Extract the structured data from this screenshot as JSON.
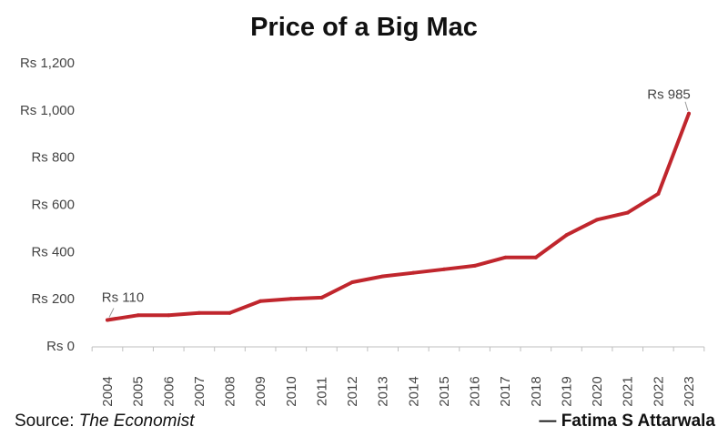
{
  "chart_data": {
    "type": "line",
    "title": "Price of a Big Mac",
    "x": [
      "2004",
      "2005",
      "2006",
      "2007",
      "2008",
      "2009",
      "2010",
      "2011",
      "2012",
      "2013",
      "2014",
      "2015",
      "2016",
      "2017",
      "2018",
      "2019",
      "2020",
      "2021",
      "2022",
      "2023"
    ],
    "series": [
      {
        "values": [
          110,
          130,
          130,
          140,
          140,
          190,
          200,
          205,
          270,
          295,
          310,
          325,
          340,
          375,
          375,
          470,
          535,
          565,
          645,
          985
        ]
      }
    ],
    "y_ticks": [
      0,
      200,
      400,
      600,
      800,
      1000,
      1200
    ],
    "y_tick_labels": [
      "Rs 0",
      "Rs 200",
      "Rs 400",
      "Rs 600",
      "Rs 800",
      "Rs 1,000",
      "Rs 1,200"
    ],
    "ylim": [
      0,
      1200
    ],
    "annotations": [
      {
        "x": "2004",
        "text": "Rs 110"
      },
      {
        "x": "2023",
        "text": "Rs 985"
      }
    ],
    "grid": false,
    "line_color": "#c0262d"
  },
  "footer": {
    "source_label": "Source: ",
    "source_name": "The Economist",
    "author": "— Fatima S Attarwala"
  }
}
